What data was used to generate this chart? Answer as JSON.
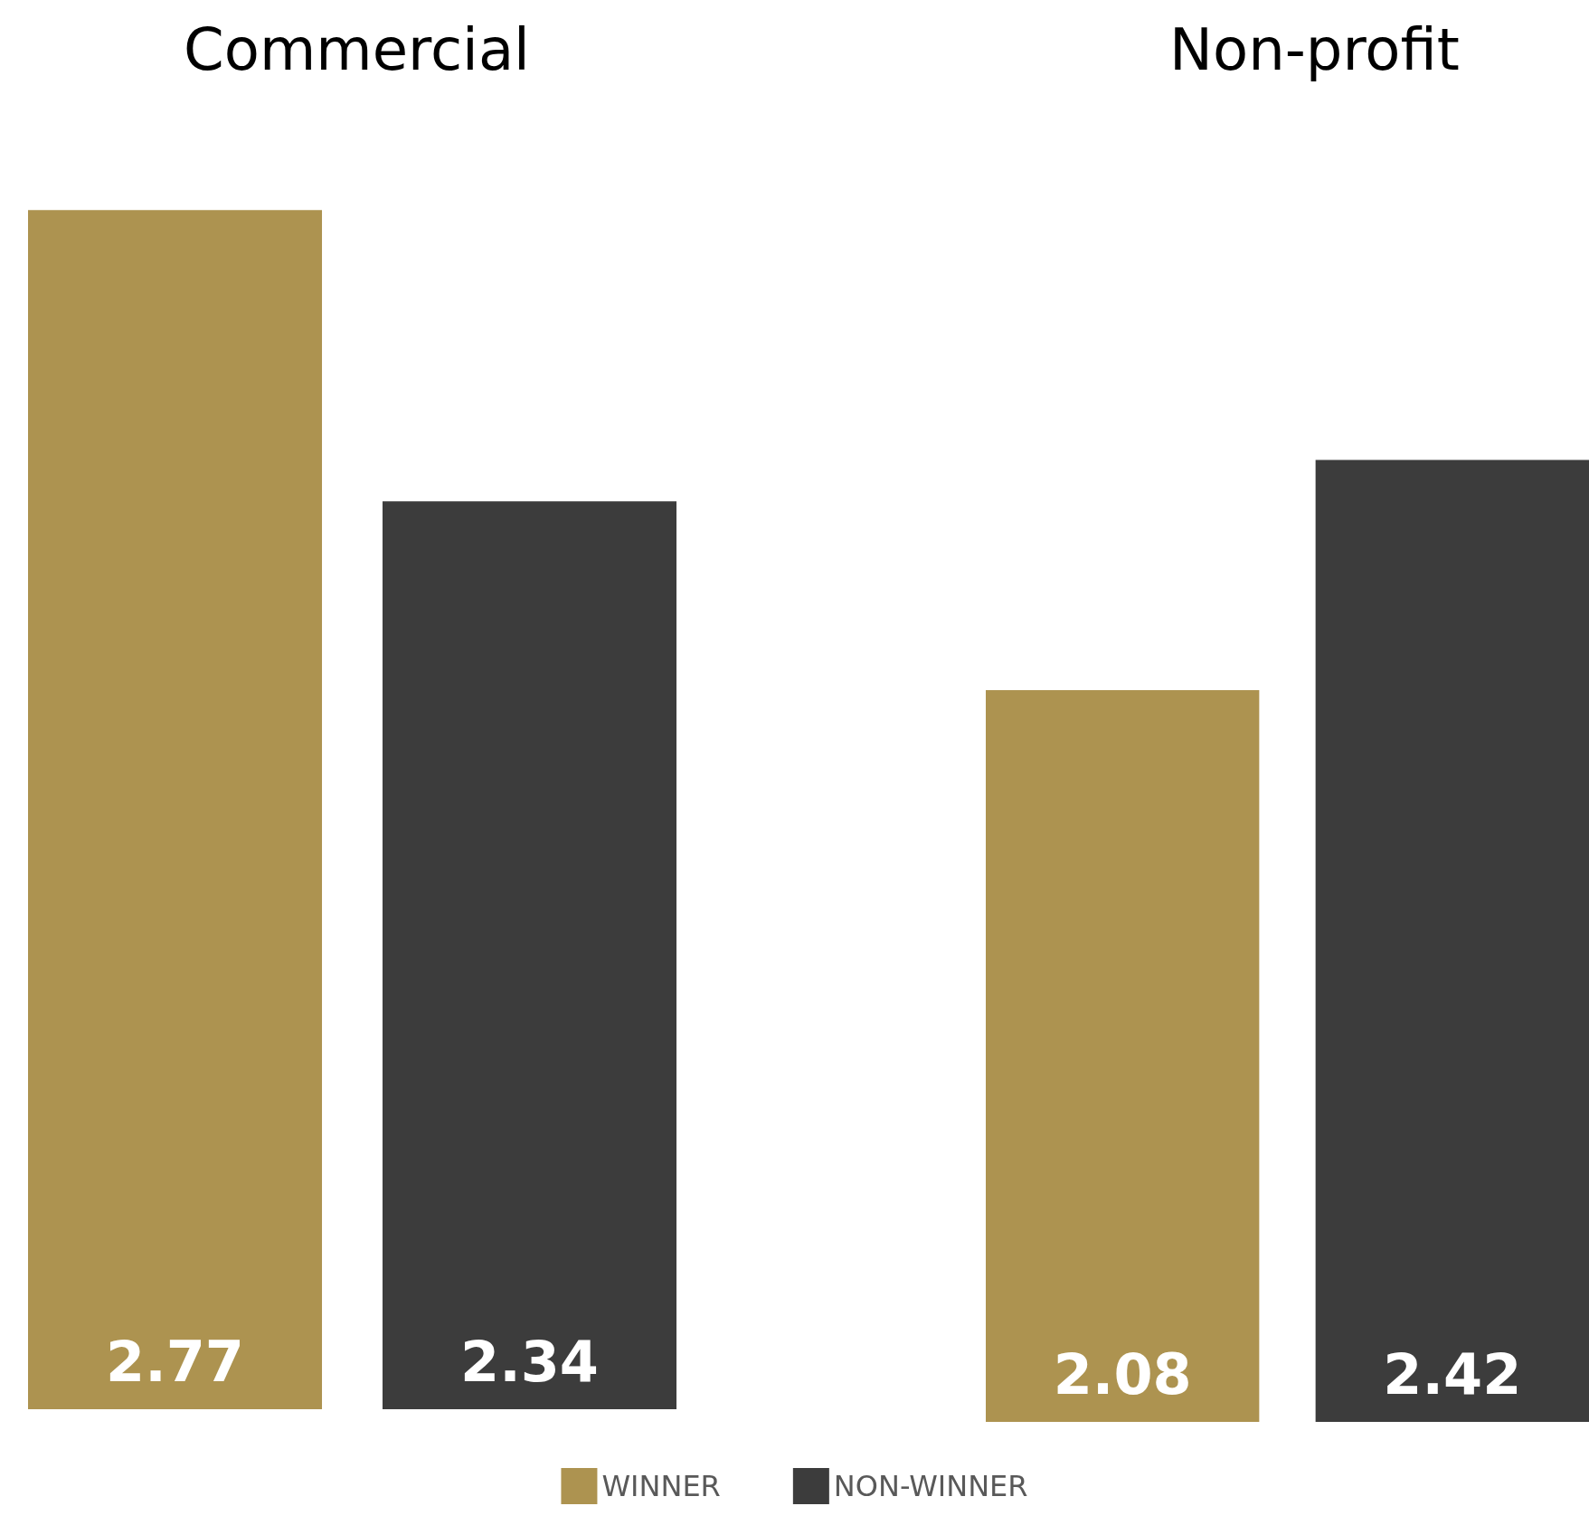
{
  "chart_data": [
    {
      "type": "bar",
      "title": "Commercial",
      "categories": [
        null
      ],
      "ylim": [
        1,
        2.77
      ],
      "data_labels": true,
      "legend": "bottom",
      "series": [
        {
          "name": "WINNER",
          "color": "#ad9350",
          "values": [
            2.77
          ]
        },
        {
          "name": "NON-WINNER",
          "color": "#3c3c3c",
          "values": [
            2.34
          ]
        }
      ]
    },
    {
      "type": "bar",
      "title": "Non-profit",
      "categories": [
        null
      ],
      "ylim": [
        1,
        2.42
      ],
      "data_labels": true,
      "series": [
        {
          "color": "#ad9350",
          "values": [
            2.08
          ]
        },
        {
          "color": "#3c3c3c",
          "values": [
            2.42
          ]
        }
      ]
    }
  ]
}
